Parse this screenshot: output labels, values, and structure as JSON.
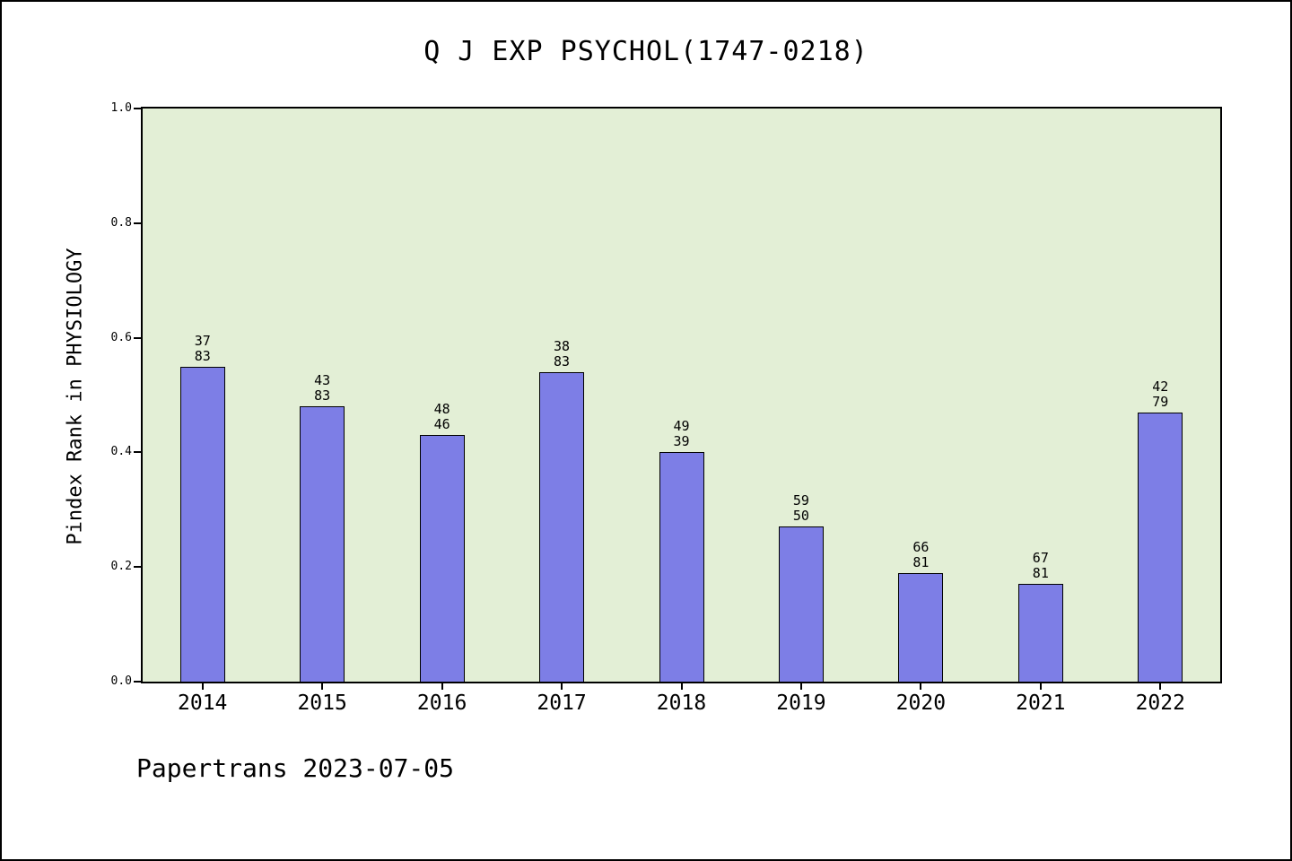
{
  "chart_data": {
    "type": "bar",
    "title": "Q J EXP PSYCHOL(1747-0218)",
    "xlabel": "",
    "ylabel": "Pindex Rank in PHYSIOLOGY",
    "categories": [
      "2014",
      "2015",
      "2016",
      "2017",
      "2018",
      "2019",
      "2020",
      "2021",
      "2022"
    ],
    "values": [
      0.55,
      0.48,
      0.43,
      0.54,
      0.4,
      0.27,
      0.19,
      0.17,
      0.47
    ],
    "bar_labels": [
      [
        "37",
        "83"
      ],
      [
        "43",
        "83"
      ],
      [
        "48",
        "46"
      ],
      [
        "38",
        "83"
      ],
      [
        "49",
        "39"
      ],
      [
        "59",
        "50"
      ],
      [
        "66",
        "81"
      ],
      [
        "67",
        "81"
      ],
      [
        "42",
        "79"
      ]
    ],
    "ylim": [
      0.0,
      1.0
    ],
    "yticks": [
      "0.0",
      "0.2",
      "0.4",
      "0.6",
      "0.8",
      "1.0"
    ],
    "grid": false,
    "legend_position": "none",
    "colors": {
      "bar_fill": "#7d7ee6",
      "bar_edge": "#000000",
      "plot_bg": "#e3efd6",
      "page_bg": "#ffffff"
    }
  },
  "footer": {
    "text": "Papertrans 2023-07-05"
  }
}
